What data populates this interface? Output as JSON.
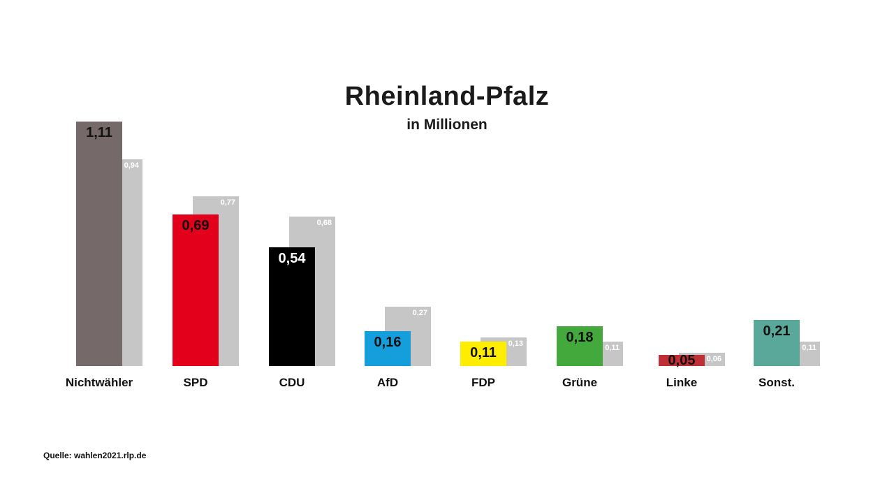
{
  "title": "Rheinland-Pfalz",
  "subtitle": "in Millionen",
  "source": "Quelle: wahlen2021.rlp.de",
  "colors": {
    "background": "#ffffff",
    "text": "#1a1a1a",
    "comparison_bar": "#c6c6c6",
    "comparison_label": "#ffffff"
  },
  "chart_data": {
    "type": "bar",
    "title": "Rheinland-Pfalz",
    "subtitle": "in Millionen",
    "categories": [
      "Nichtwähler",
      "SPD",
      "CDU",
      "AfD",
      "FDP",
      "Grüne",
      "Linke",
      "Sonst."
    ],
    "series": [
      {
        "name": "primary",
        "values": [
          1.11,
          0.69,
          0.54,
          0.16,
          0.11,
          0.18,
          0.05,
          0.21
        ],
        "labels": [
          "1,11",
          "0,69",
          "0,54",
          "0,16",
          "0,11",
          "0,18",
          "0,05",
          "0,21"
        ],
        "bar_colors": [
          "#756969",
          "#e2001a",
          "#000000",
          "#149fdc",
          "#ffed00",
          "#44a93c",
          "#bf3036",
          "#5aa899"
        ],
        "label_colors": [
          "#111111",
          "#111111",
          "#ffffff",
          "#111111",
          "#111111",
          "#111111",
          "#111111",
          "#111111"
        ]
      },
      {
        "name": "comparison",
        "values": [
          0.94,
          0.77,
          0.68,
          0.27,
          0.13,
          0.11,
          0.06,
          0.11
        ],
        "labels": [
          "0,94",
          "0,77",
          "0,68",
          "0,27",
          "0,13",
          "0,11",
          "0,06",
          "0,11"
        ],
        "bar_color": "#c6c6c6",
        "label_color": "#ffffff"
      }
    ],
    "ylim": [
      0,
      1.2
    ],
    "grid": false,
    "legend": "none",
    "source": "Quelle: wahlen2021.rlp.de"
  }
}
